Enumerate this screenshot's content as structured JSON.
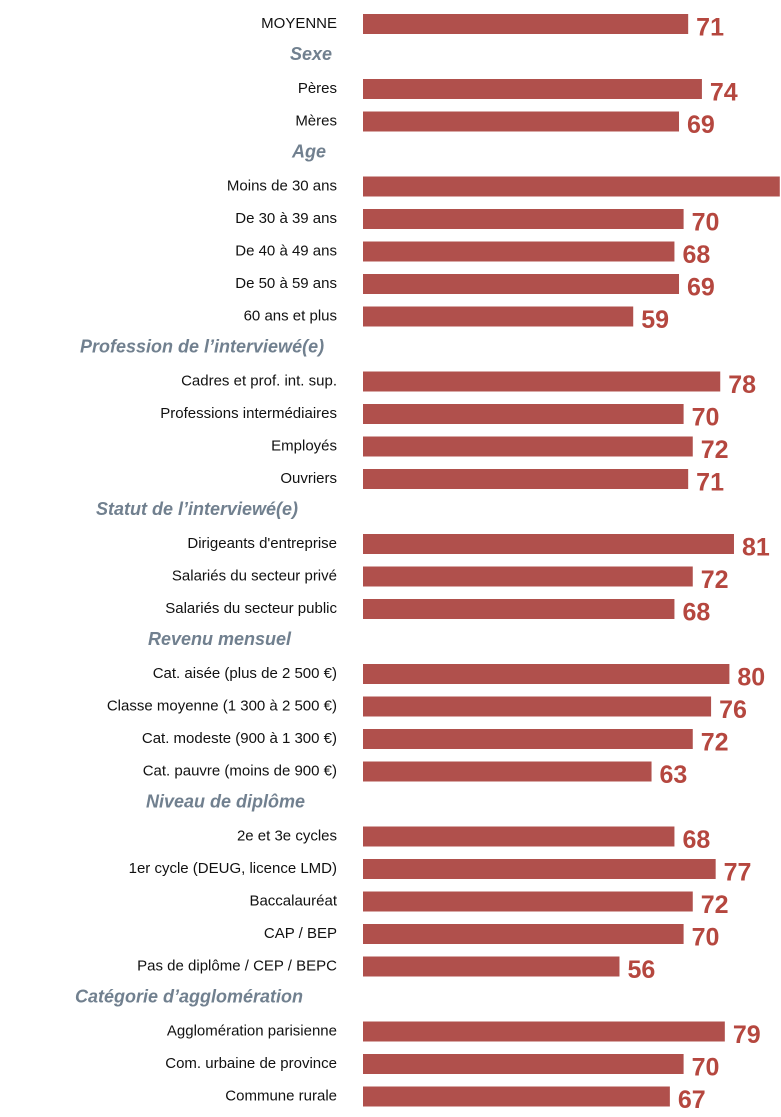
{
  "chart_data": {
    "type": "bar",
    "color": "#b0504c",
    "label_color": "#b5473f",
    "overall": {
      "category": "MOYENNE",
      "value": 71
    },
    "groups": [
      {
        "title": "Sexe",
        "categories": [
          "Pères",
          "Mères"
        ],
        "values": [
          74,
          69
        ]
      },
      {
        "title": "Age",
        "categories": [
          "Moins de 30 ans",
          "De 30 à 39 ans",
          "De 40 à 49 ans",
          "De 50 à 59 ans",
          "60 ans et plus"
        ],
        "values": [
          91,
          70,
          68,
          69,
          59
        ]
      },
      {
        "title": "Profession de l’interviewé(e)",
        "categories": [
          "Cadres et prof. int. sup.",
          "Professions intermédiaires",
          "Employés",
          "Ouvriers"
        ],
        "values": [
          78,
          70,
          72,
          71
        ]
      },
      {
        "title": "Statut de l’interviewé(e)",
        "categories": [
          "Dirigeants d'entreprise",
          "Salariés du secteur privé",
          "Salariés du secteur public"
        ],
        "values": [
          81,
          72,
          68
        ]
      },
      {
        "title": "Revenu mensuel",
        "categories": [
          "Cat. aisée (plus de 2 500 €)",
          "Classe moyenne (1 300 à 2 500 €)",
          "Cat. modeste (900 à 1 300 €)",
          "Cat. pauvre (moins de 900 €)"
        ],
        "values": [
          80,
          76,
          72,
          63
        ]
      },
      {
        "title": "Niveau de diplôme",
        "categories": [
          "2e et 3e cycles",
          "1er cycle (DEUG, licence LMD)",
          "Baccalauréat",
          "CAP / BEP",
          "Pas de diplôme / CEP / BEPC"
        ],
        "values": [
          68,
          77,
          72,
          70,
          56
        ]
      },
      {
        "title": "Catégorie d’agglomération",
        "categories": [
          "Agglomération parisienne",
          "Com. urbaine de province",
          "Commune rurale"
        ],
        "values": [
          79,
          70,
          67
        ]
      }
    ]
  }
}
